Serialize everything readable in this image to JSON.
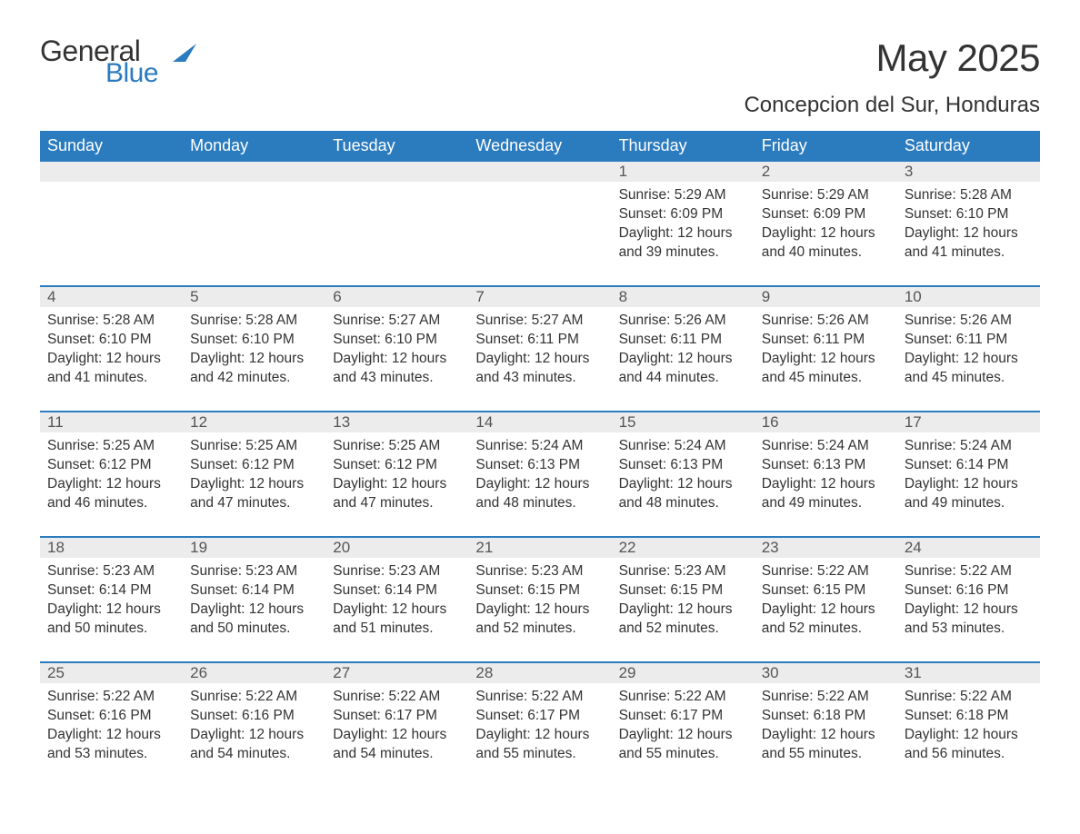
{
  "logo": {
    "general": "General",
    "blue": "Blue",
    "icon_color": "#2b7bbf"
  },
  "title": "May 2025",
  "location": "Concepcion del Sur, Honduras",
  "colors": {
    "header_bg": "#2b7bbf",
    "header_text": "#ffffff",
    "daynum_bg": "#ececec",
    "daynum_text": "#555555",
    "body_text": "#333333",
    "week_border": "#2b7bbf",
    "page_bg": "#ffffff"
  },
  "typography": {
    "month_title_fontsize": 42,
    "location_fontsize": 24,
    "dayhead_fontsize": 18,
    "daynum_fontsize": 17,
    "cell_fontsize": 15.5
  },
  "day_headers": [
    "Sunday",
    "Monday",
    "Tuesday",
    "Wednesday",
    "Thursday",
    "Friday",
    "Saturday"
  ],
  "weeks": [
    [
      {
        "day": "",
        "sunrise": "",
        "sunset": "",
        "daylight": ""
      },
      {
        "day": "",
        "sunrise": "",
        "sunset": "",
        "daylight": ""
      },
      {
        "day": "",
        "sunrise": "",
        "sunset": "",
        "daylight": ""
      },
      {
        "day": "",
        "sunrise": "",
        "sunset": "",
        "daylight": ""
      },
      {
        "day": "1",
        "sunrise": "Sunrise: 5:29 AM",
        "sunset": "Sunset: 6:09 PM",
        "daylight": "Daylight: 12 hours and 39 minutes."
      },
      {
        "day": "2",
        "sunrise": "Sunrise: 5:29 AM",
        "sunset": "Sunset: 6:09 PM",
        "daylight": "Daylight: 12 hours and 40 minutes."
      },
      {
        "day": "3",
        "sunrise": "Sunrise: 5:28 AM",
        "sunset": "Sunset: 6:10 PM",
        "daylight": "Daylight: 12 hours and 41 minutes."
      }
    ],
    [
      {
        "day": "4",
        "sunrise": "Sunrise: 5:28 AM",
        "sunset": "Sunset: 6:10 PM",
        "daylight": "Daylight: 12 hours and 41 minutes."
      },
      {
        "day": "5",
        "sunrise": "Sunrise: 5:28 AM",
        "sunset": "Sunset: 6:10 PM",
        "daylight": "Daylight: 12 hours and 42 minutes."
      },
      {
        "day": "6",
        "sunrise": "Sunrise: 5:27 AM",
        "sunset": "Sunset: 6:10 PM",
        "daylight": "Daylight: 12 hours and 43 minutes."
      },
      {
        "day": "7",
        "sunrise": "Sunrise: 5:27 AM",
        "sunset": "Sunset: 6:11 PM",
        "daylight": "Daylight: 12 hours and 43 minutes."
      },
      {
        "day": "8",
        "sunrise": "Sunrise: 5:26 AM",
        "sunset": "Sunset: 6:11 PM",
        "daylight": "Daylight: 12 hours and 44 minutes."
      },
      {
        "day": "9",
        "sunrise": "Sunrise: 5:26 AM",
        "sunset": "Sunset: 6:11 PM",
        "daylight": "Daylight: 12 hours and 45 minutes."
      },
      {
        "day": "10",
        "sunrise": "Sunrise: 5:26 AM",
        "sunset": "Sunset: 6:11 PM",
        "daylight": "Daylight: 12 hours and 45 minutes."
      }
    ],
    [
      {
        "day": "11",
        "sunrise": "Sunrise: 5:25 AM",
        "sunset": "Sunset: 6:12 PM",
        "daylight": "Daylight: 12 hours and 46 minutes."
      },
      {
        "day": "12",
        "sunrise": "Sunrise: 5:25 AM",
        "sunset": "Sunset: 6:12 PM",
        "daylight": "Daylight: 12 hours and 47 minutes."
      },
      {
        "day": "13",
        "sunrise": "Sunrise: 5:25 AM",
        "sunset": "Sunset: 6:12 PM",
        "daylight": "Daylight: 12 hours and 47 minutes."
      },
      {
        "day": "14",
        "sunrise": "Sunrise: 5:24 AM",
        "sunset": "Sunset: 6:13 PM",
        "daylight": "Daylight: 12 hours and 48 minutes."
      },
      {
        "day": "15",
        "sunrise": "Sunrise: 5:24 AM",
        "sunset": "Sunset: 6:13 PM",
        "daylight": "Daylight: 12 hours and 48 minutes."
      },
      {
        "day": "16",
        "sunrise": "Sunrise: 5:24 AM",
        "sunset": "Sunset: 6:13 PM",
        "daylight": "Daylight: 12 hours and 49 minutes."
      },
      {
        "day": "17",
        "sunrise": "Sunrise: 5:24 AM",
        "sunset": "Sunset: 6:14 PM",
        "daylight": "Daylight: 12 hours and 49 minutes."
      }
    ],
    [
      {
        "day": "18",
        "sunrise": "Sunrise: 5:23 AM",
        "sunset": "Sunset: 6:14 PM",
        "daylight": "Daylight: 12 hours and 50 minutes."
      },
      {
        "day": "19",
        "sunrise": "Sunrise: 5:23 AM",
        "sunset": "Sunset: 6:14 PM",
        "daylight": "Daylight: 12 hours and 50 minutes."
      },
      {
        "day": "20",
        "sunrise": "Sunrise: 5:23 AM",
        "sunset": "Sunset: 6:14 PM",
        "daylight": "Daylight: 12 hours and 51 minutes."
      },
      {
        "day": "21",
        "sunrise": "Sunrise: 5:23 AM",
        "sunset": "Sunset: 6:15 PM",
        "daylight": "Daylight: 12 hours and 52 minutes."
      },
      {
        "day": "22",
        "sunrise": "Sunrise: 5:23 AM",
        "sunset": "Sunset: 6:15 PM",
        "daylight": "Daylight: 12 hours and 52 minutes."
      },
      {
        "day": "23",
        "sunrise": "Sunrise: 5:22 AM",
        "sunset": "Sunset: 6:15 PM",
        "daylight": "Daylight: 12 hours and 52 minutes."
      },
      {
        "day": "24",
        "sunrise": "Sunrise: 5:22 AM",
        "sunset": "Sunset: 6:16 PM",
        "daylight": "Daylight: 12 hours and 53 minutes."
      }
    ],
    [
      {
        "day": "25",
        "sunrise": "Sunrise: 5:22 AM",
        "sunset": "Sunset: 6:16 PM",
        "daylight": "Daylight: 12 hours and 53 minutes."
      },
      {
        "day": "26",
        "sunrise": "Sunrise: 5:22 AM",
        "sunset": "Sunset: 6:16 PM",
        "daylight": "Daylight: 12 hours and 54 minutes."
      },
      {
        "day": "27",
        "sunrise": "Sunrise: 5:22 AM",
        "sunset": "Sunset: 6:17 PM",
        "daylight": "Daylight: 12 hours and 54 minutes."
      },
      {
        "day": "28",
        "sunrise": "Sunrise: 5:22 AM",
        "sunset": "Sunset: 6:17 PM",
        "daylight": "Daylight: 12 hours and 55 minutes."
      },
      {
        "day": "29",
        "sunrise": "Sunrise: 5:22 AM",
        "sunset": "Sunset: 6:17 PM",
        "daylight": "Daylight: 12 hours and 55 minutes."
      },
      {
        "day": "30",
        "sunrise": "Sunrise: 5:22 AM",
        "sunset": "Sunset: 6:18 PM",
        "daylight": "Daylight: 12 hours and 55 minutes."
      },
      {
        "day": "31",
        "sunrise": "Sunrise: 5:22 AM",
        "sunset": "Sunset: 6:18 PM",
        "daylight": "Daylight: 12 hours and 56 minutes."
      }
    ]
  ]
}
